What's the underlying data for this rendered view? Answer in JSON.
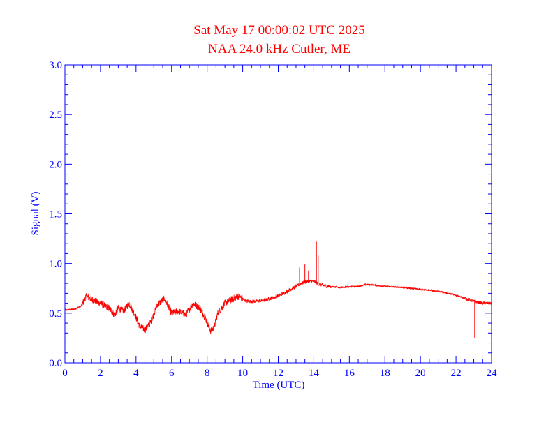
{
  "chart_data": {
    "type": "line",
    "title": "Sat May 17 00:00:02 UTC 2025",
    "subtitle": "NAA 24.0 kHz Cutler, ME",
    "xlabel": "Time (UTC)",
    "ylabel": "Signal (V)",
    "xlim": [
      0,
      24
    ],
    "ylim": [
      0,
      3.0
    ],
    "x_ticks": [
      "0",
      "2",
      "4",
      "6",
      "8",
      "10",
      "12",
      "14",
      "16",
      "18",
      "20",
      "22",
      "24"
    ],
    "y_ticks": [
      "0.0",
      "0.5",
      "1.0",
      "1.5",
      "2.0",
      "2.5",
      "3.0"
    ],
    "grid": false,
    "colors": {
      "axis": "#0000ff",
      "series": "#ff0000",
      "title": "#ff0000"
    },
    "series": [
      {
        "x": [
          0,
          0.5,
          0.9,
          1.2,
          1.5,
          2.0,
          2.5,
          2.8,
          3.0,
          3.3,
          3.6,
          3.9,
          4.2,
          4.5,
          4.8,
          5.2,
          5.6,
          6.0,
          6.4,
          6.8,
          7.2,
          7.6,
          7.9,
          8.2,
          8.4,
          8.6,
          9.0,
          9.5,
          9.8,
          10.2,
          10.7,
          11.2,
          11.8,
          12.3,
          12.8,
          13.3,
          13.6,
          14.0,
          14.3,
          14.8,
          15.5,
          16.5,
          17.0,
          18.0,
          19.0,
          20.0,
          21.0,
          21.8,
          22.5,
          23.0,
          23.5,
          24.0
        ],
        "y": [
          0.53,
          0.54,
          0.57,
          0.67,
          0.64,
          0.6,
          0.55,
          0.48,
          0.55,
          0.52,
          0.6,
          0.5,
          0.37,
          0.33,
          0.4,
          0.58,
          0.65,
          0.5,
          0.52,
          0.48,
          0.6,
          0.55,
          0.45,
          0.32,
          0.36,
          0.5,
          0.6,
          0.65,
          0.67,
          0.62,
          0.62,
          0.63,
          0.66,
          0.7,
          0.75,
          0.8,
          0.82,
          0.82,
          0.79,
          0.77,
          0.76,
          0.77,
          0.79,
          0.77,
          0.76,
          0.74,
          0.72,
          0.69,
          0.65,
          0.62,
          0.6,
          0.6
        ]
      }
    ],
    "spikes": [
      {
        "x": 13.2,
        "y": 0.96
      },
      {
        "x": 13.5,
        "y": 0.99
      },
      {
        "x": 13.7,
        "y": 0.93
      },
      {
        "x": 14.15,
        "y": 1.22
      },
      {
        "x": 14.25,
        "y": 1.08
      },
      {
        "x": 23.05,
        "y": 0.25
      }
    ]
  }
}
